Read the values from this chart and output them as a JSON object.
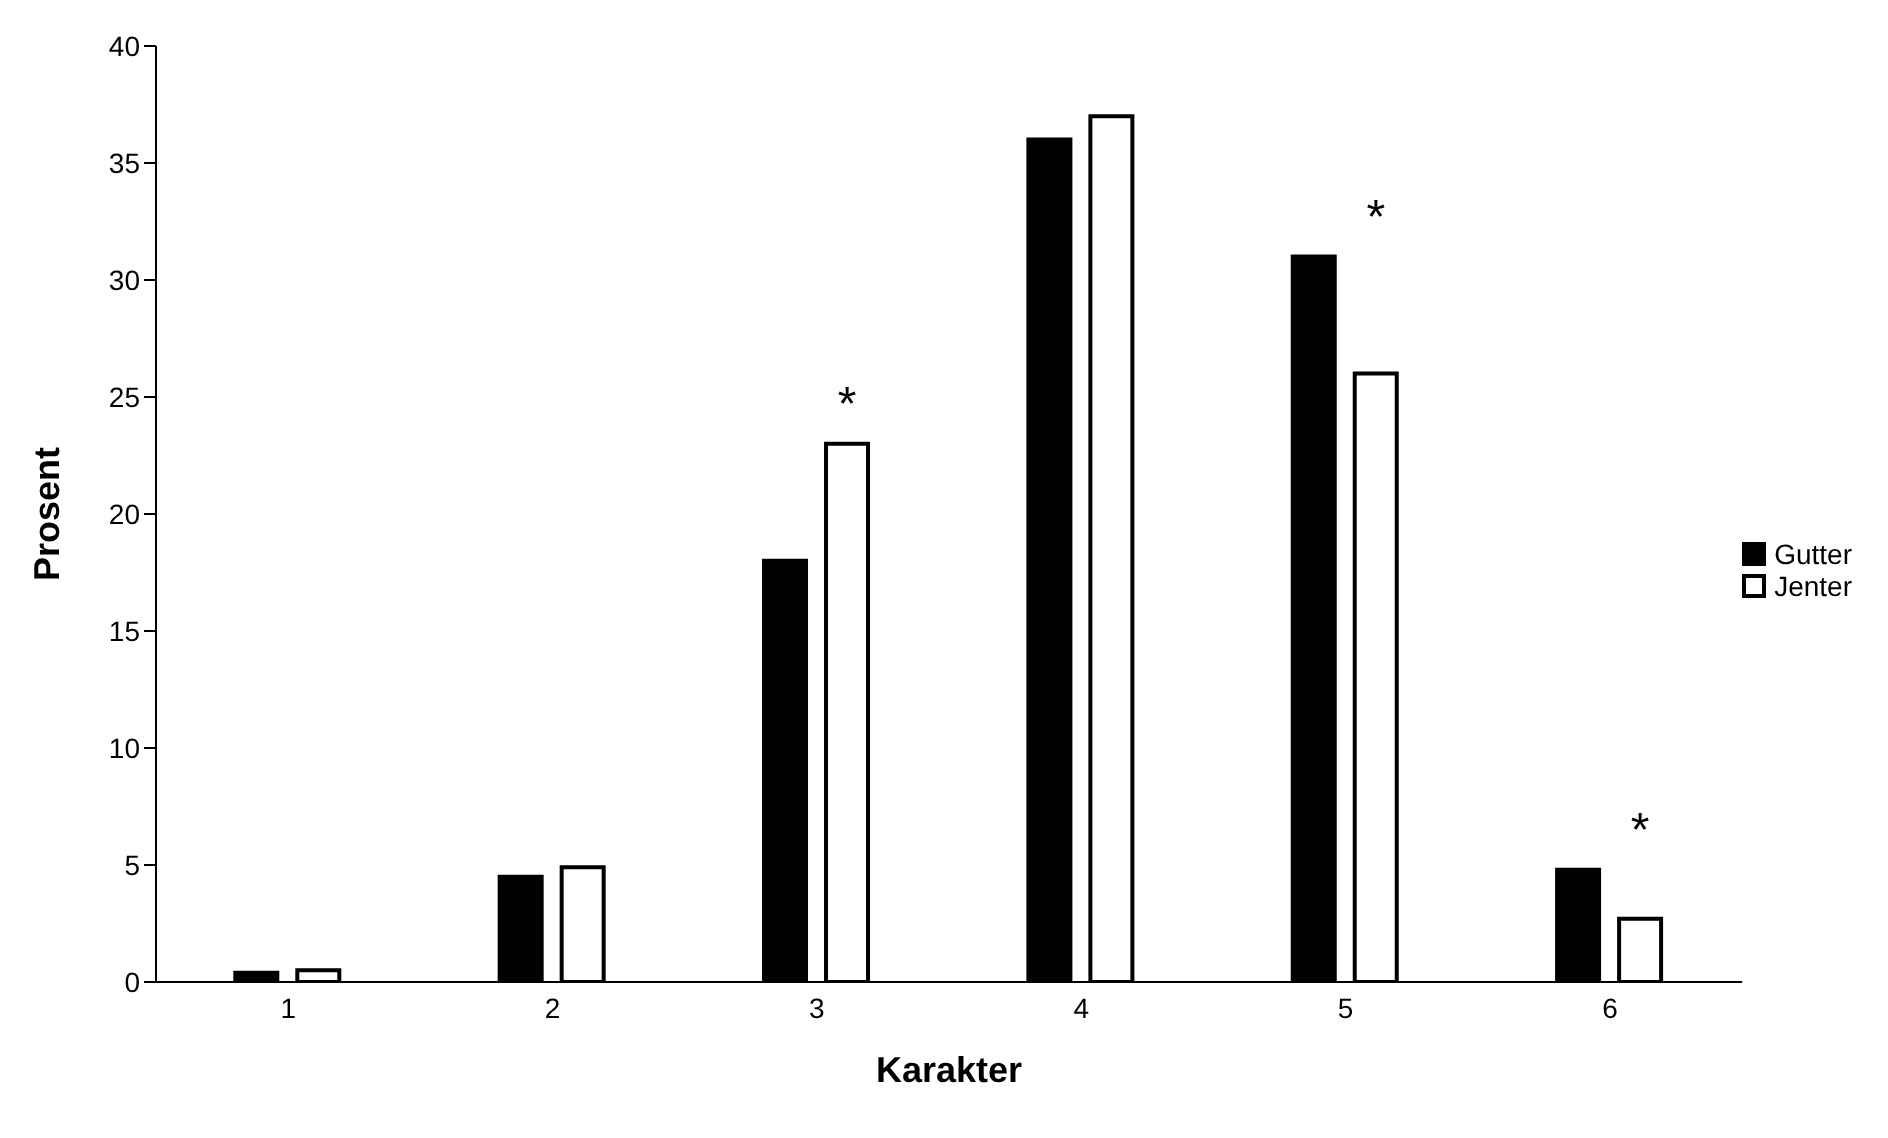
{
  "chart_data": {
    "type": "bar",
    "xlabel": "Karakter",
    "ylabel": "Prosent",
    "categories": [
      "1",
      "2",
      "3",
      "4",
      "5",
      "6"
    ],
    "series": [
      {
        "name": "Gutter",
        "color": "#000000",
        "values": [
          0.4,
          4.5,
          18,
          36,
          31,
          4.8
        ]
      },
      {
        "name": "Jenter",
        "color": "#ffffff",
        "values": [
          0.5,
          4.9,
          23,
          37,
          26,
          2.7
        ]
      }
    ],
    "ylim": [
      0,
      40
    ],
    "yticks": [
      0,
      5,
      10,
      15,
      20,
      25,
      30,
      35,
      40
    ],
    "grid": false,
    "legend": "right",
    "annotations": [
      {
        "text": "*",
        "x": "3",
        "y": 23
      },
      {
        "text": "*",
        "x": "5",
        "y": 26
      },
      {
        "text": "*",
        "x": "6",
        "y": 2.7
      }
    ]
  }
}
